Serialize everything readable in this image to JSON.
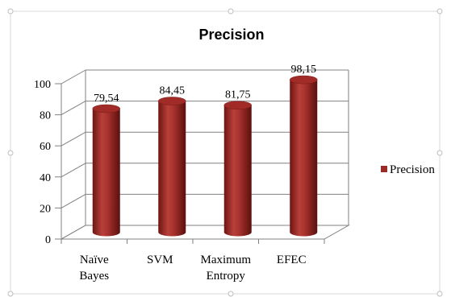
{
  "chart_data": {
    "type": "bar",
    "style": "3d-cylinder",
    "title": "Precision",
    "categories": [
      [
        "Naïve",
        "Bayes"
      ],
      [
        "SVM"
      ],
      [
        "Maximum",
        "Entropy"
      ],
      [
        "EFEC"
      ]
    ],
    "series": [
      {
        "name": "Precision",
        "values": [
          79.54,
          84.45,
          81.75,
          98.15
        ],
        "labels": [
          "79,54",
          "84,45",
          "81,75",
          "98,15"
        ],
        "color": "#9b2a26"
      }
    ],
    "yticks": [
      "0",
      "20",
      "40",
      "60",
      "80",
      "100"
    ],
    "ylim": [
      0,
      100
    ],
    "grid": true,
    "legend": "right"
  }
}
